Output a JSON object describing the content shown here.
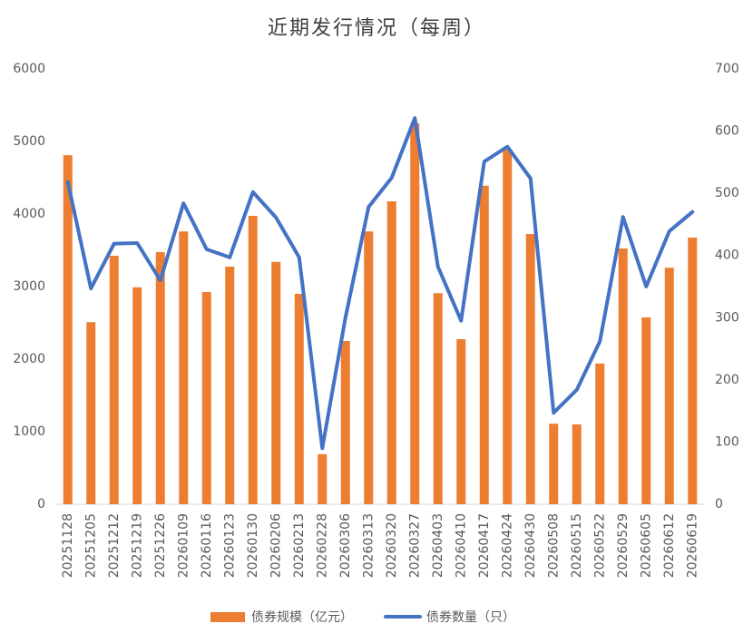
{
  "chart_data": {
    "type": "bar",
    "title": "近期发行情况（每周）",
    "categories": [
      "20251128",
      "20251205",
      "20251212",
      "20251219",
      "20251226",
      "20260109",
      "20260116",
      "20260123",
      "20260130",
      "20260206",
      "20260213",
      "20260228",
      "20260306",
      "20260313",
      "20260320",
      "20260327",
      "20260403",
      "20260410",
      "20260417",
      "20260424",
      "20260430",
      "20260508",
      "20260515",
      "20260522",
      "20260529",
      "20260605",
      "20260612",
      "20260619"
    ],
    "series": [
      {
        "name": "债券规模（亿元）",
        "type": "bar",
        "color": "#ed7d31",
        "values": [
          4810,
          2510,
          3425,
          2990,
          3475,
          3760,
          2925,
          3275,
          3975,
          3340,
          2900,
          690,
          2250,
          3760,
          4175,
          5250,
          2910,
          2275,
          4390,
          4890,
          3725,
          1110,
          1100,
          1940,
          3525,
          2575,
          3260,
          3675
        ]
      },
      {
        "name": "债券数量（只）",
        "type": "line",
        "axis": "y2",
        "color": "#4472c4",
        "values": [
          518,
          347,
          419,
          420,
          360,
          484,
          410,
          397,
          502,
          461,
          397,
          90,
          300,
          478,
          525,
          621,
          382,
          295,
          551,
          575,
          524,
          147,
          184,
          262,
          462,
          350,
          439,
          470
        ]
      }
    ],
    "ylim": [
      0,
      6000
    ],
    "yticks": [
      0,
      1000,
      2000,
      3000,
      4000,
      5000,
      6000
    ],
    "y2lim": [
      0,
      700
    ],
    "y2ticks": [
      0,
      100,
      200,
      300,
      400,
      500,
      600,
      700
    ],
    "legend": "bottom"
  }
}
